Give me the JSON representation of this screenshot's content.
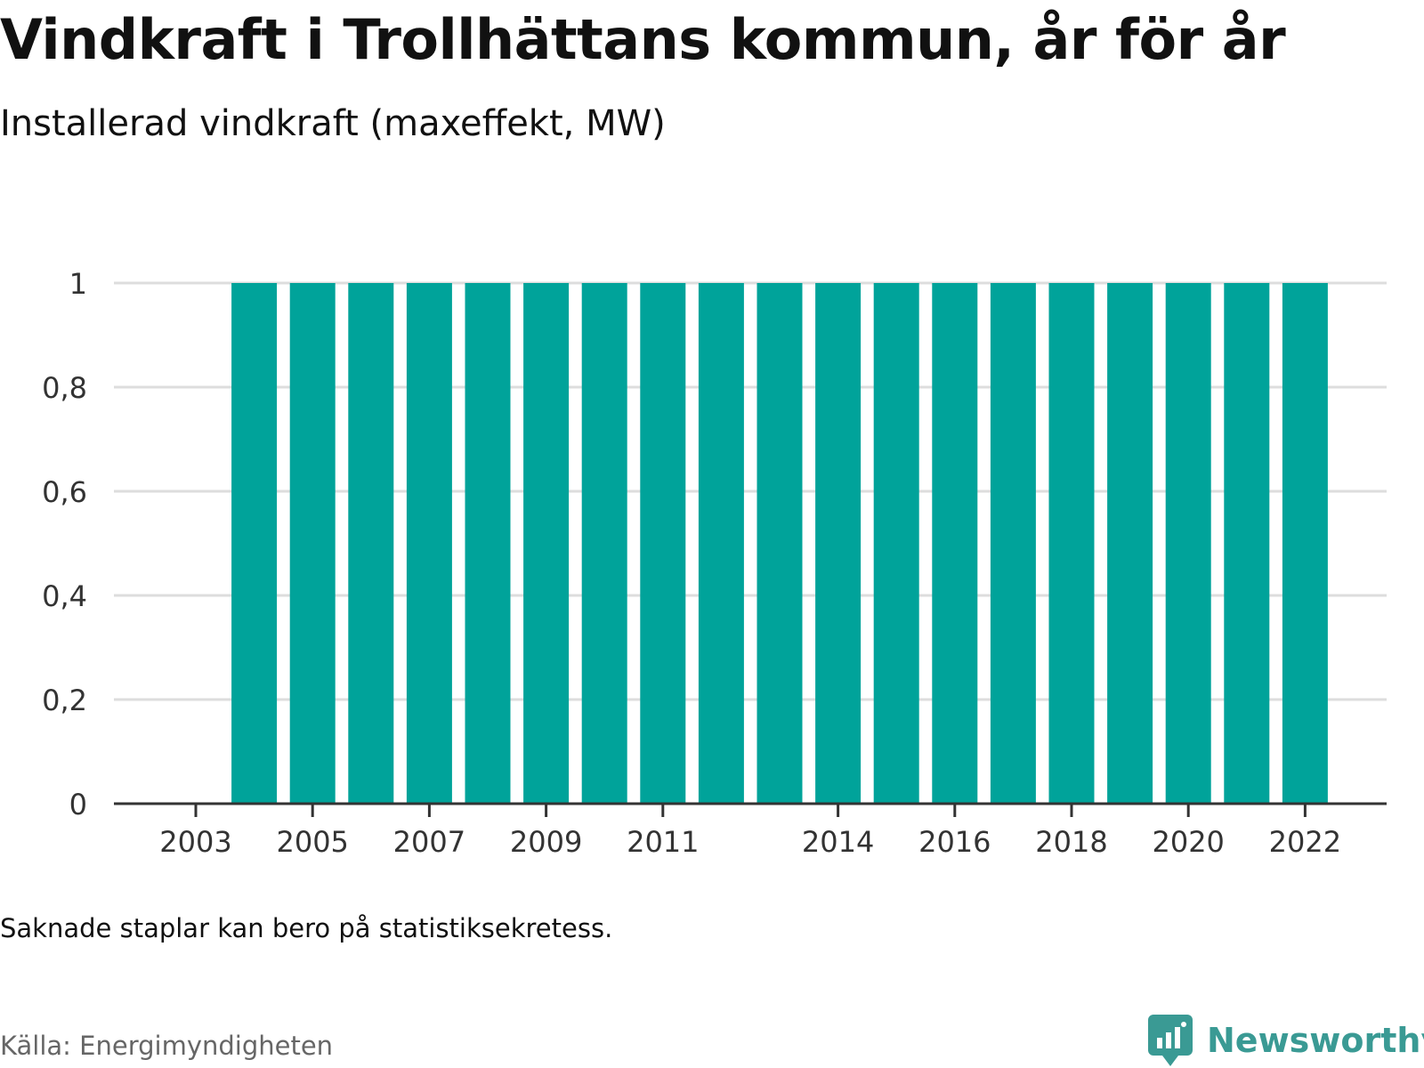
{
  "header": {
    "title": "Vindkraft i Trollhättans kommun, år för år",
    "subtitle": "Installerad vindkraft (maxeffekt, MW)"
  },
  "footer": {
    "note": "Saknade staplar kan bero på statistiksekretess.",
    "source": "Källa: Energimyndigheten",
    "brand": "Newsworthy",
    "brand_icon": "bar-chart-speech-bubble-icon"
  },
  "colors": {
    "bar": "#00a39a",
    "grid": "#dddddd",
    "axis": "#333333",
    "brand": "#3a9a94"
  },
  "chart_data": {
    "type": "bar",
    "title": "Vindkraft i Trollhättans kommun, år för år",
    "ylabel": "Installerad vindkraft (maxeffekt, MW)",
    "xlabel": "",
    "categories": [
      2003,
      2004,
      2005,
      2006,
      2007,
      2008,
      2009,
      2010,
      2011,
      2012,
      2013,
      2014,
      2015,
      2016,
      2017,
      2018,
      2019,
      2020,
      2021,
      2022
    ],
    "values": [
      null,
      1,
      1,
      1,
      1,
      1,
      1,
      1,
      1,
      1,
      1,
      1,
      1,
      1,
      1,
      1,
      1,
      1,
      1,
      1
    ],
    "x_tick_labels": [
      "2003",
      "2005",
      "2007",
      "2009",
      "2011",
      "2014",
      "2016",
      "2018",
      "2020",
      "2022"
    ],
    "y_tick_labels": [
      "0",
      "0,2",
      "0,4",
      "0,6",
      "0,8",
      "1"
    ],
    "y_ticks": [
      0,
      0.2,
      0.4,
      0.6,
      0.8,
      1
    ],
    "ylim": [
      0,
      1
    ],
    "grid": true,
    "legend": "none"
  }
}
